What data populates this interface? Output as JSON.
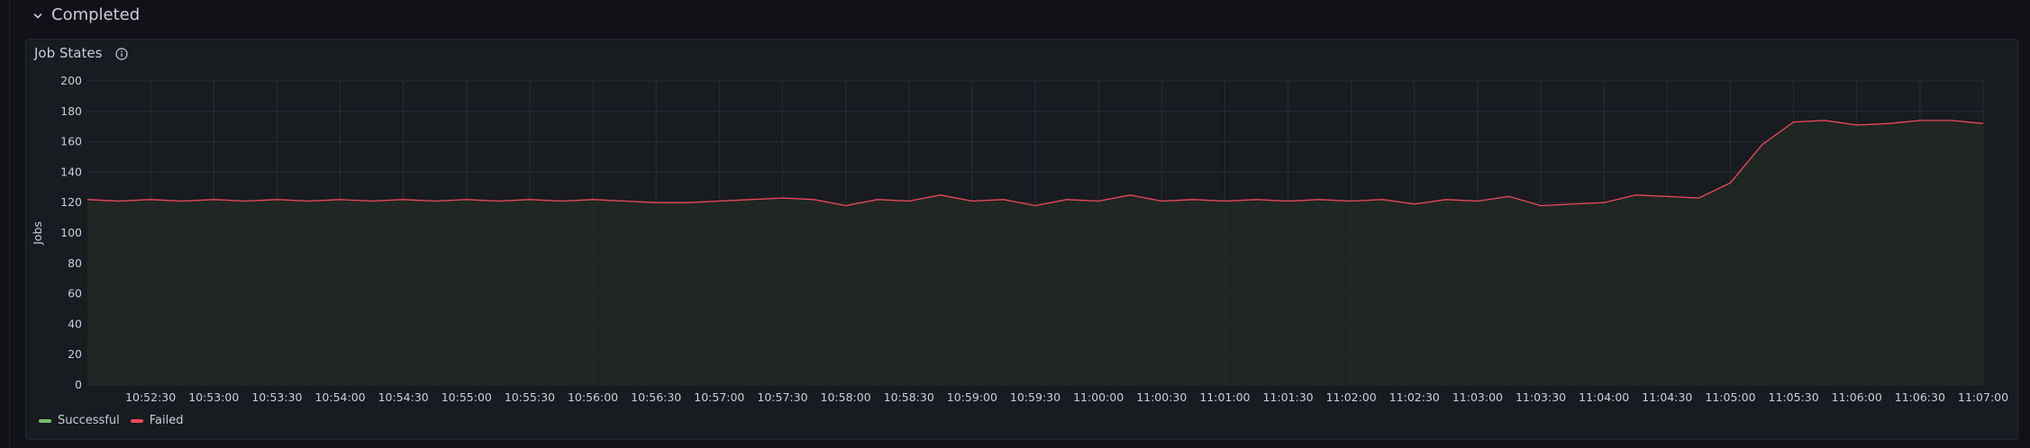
{
  "row": {
    "title": "Completed"
  },
  "panel": {
    "title": "Job States"
  },
  "colors": {
    "successful": "#73bf69",
    "failed": "#f2495c",
    "grid": "#2a2d33",
    "fill": "#212824"
  },
  "legend": [
    {
      "label": "Successful",
      "color": "#73bf69"
    },
    {
      "label": "Failed",
      "color": "#f2495c"
    }
  ],
  "chart_data": {
    "type": "area",
    "ylabel": "Jobs",
    "xlabel": "",
    "ylim": [
      0,
      200
    ],
    "yticks": [
      0,
      20,
      40,
      60,
      80,
      100,
      120,
      140,
      160,
      180,
      200
    ],
    "x_start": "10:52:00",
    "x_end": "11:07:00",
    "x_tick_labels": [
      "10:52:30",
      "10:53:00",
      "10:53:30",
      "10:54:00",
      "10:54:30",
      "10:55:00",
      "10:55:30",
      "10:56:00",
      "10:56:30",
      "10:57:00",
      "10:57:30",
      "10:58:00",
      "10:58:30",
      "10:59:00",
      "10:59:30",
      "11:00:00",
      "11:00:30",
      "11:01:00",
      "11:01:30",
      "11:02:00",
      "11:02:30",
      "11:03:00",
      "11:03:30",
      "11:04:00",
      "11:04:30",
      "11:05:00",
      "11:05:30",
      "11:06:00",
      "11:06:30",
      "11:07:00"
    ],
    "grid": true,
    "legend_position": "bottom-left",
    "series": [
      {
        "name": "Failed",
        "color": "#f2495c",
        "points": [
          [
            "10:52:00",
            122
          ],
          [
            "10:52:15",
            121
          ],
          [
            "10:52:30",
            122
          ],
          [
            "10:52:45",
            121
          ],
          [
            "10:53:00",
            122
          ],
          [
            "10:53:15",
            121
          ],
          [
            "10:53:30",
            122
          ],
          [
            "10:53:45",
            121
          ],
          [
            "10:54:00",
            122
          ],
          [
            "10:54:15",
            121
          ],
          [
            "10:54:30",
            122
          ],
          [
            "10:54:45",
            121
          ],
          [
            "10:55:00",
            122
          ],
          [
            "10:55:15",
            121
          ],
          [
            "10:55:30",
            122
          ],
          [
            "10:55:45",
            121
          ],
          [
            "10:56:00",
            122
          ],
          [
            "10:56:15",
            121
          ],
          [
            "10:56:30",
            120
          ],
          [
            "10:56:45",
            120
          ],
          [
            "10:57:00",
            121
          ],
          [
            "10:57:15",
            122
          ],
          [
            "10:57:30",
            123
          ],
          [
            "10:57:45",
            122
          ],
          [
            "10:58:00",
            118
          ],
          [
            "10:58:15",
            122
          ],
          [
            "10:58:30",
            121
          ],
          [
            "10:58:45",
            125
          ],
          [
            "10:59:00",
            121
          ],
          [
            "10:59:15",
            122
          ],
          [
            "10:59:30",
            118
          ],
          [
            "10:59:45",
            122
          ],
          [
            "11:00:00",
            121
          ],
          [
            "11:00:15",
            125
          ],
          [
            "11:00:30",
            121
          ],
          [
            "11:00:45",
            122
          ],
          [
            "11:01:00",
            121
          ],
          [
            "11:01:15",
            122
          ],
          [
            "11:01:30",
            121
          ],
          [
            "11:01:45",
            122
          ],
          [
            "11:02:00",
            121
          ],
          [
            "11:02:15",
            122
          ],
          [
            "11:02:30",
            119
          ],
          [
            "11:02:45",
            122
          ],
          [
            "11:03:00",
            121
          ],
          [
            "11:03:15",
            124
          ],
          [
            "11:03:30",
            118
          ],
          [
            "11:03:45",
            119
          ],
          [
            "11:04:00",
            120
          ],
          [
            "11:04:15",
            125
          ],
          [
            "11:04:30",
            124
          ],
          [
            "11:04:45",
            123
          ],
          [
            "11:05:00",
            133
          ],
          [
            "11:05:15",
            158
          ],
          [
            "11:05:30",
            173
          ],
          [
            "11:05:45",
            174
          ],
          [
            "11:06:00",
            171
          ],
          [
            "11:06:15",
            172
          ],
          [
            "11:06:30",
            174
          ],
          [
            "11:06:45",
            174
          ],
          [
            "11:07:00",
            172
          ]
        ]
      }
    ]
  }
}
